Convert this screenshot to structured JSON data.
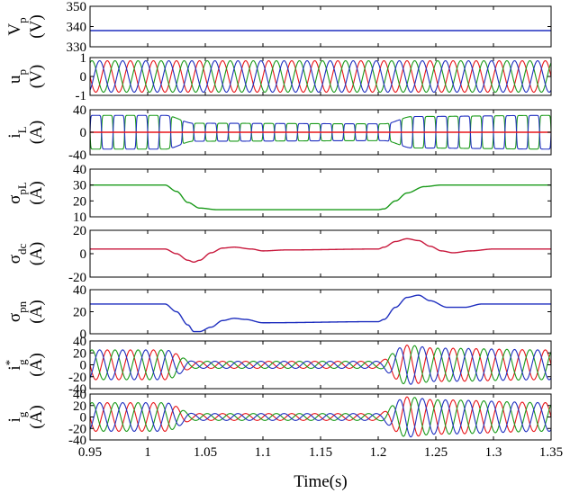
{
  "colors": {
    "red": "#e8161a",
    "green": "#1a9a1a",
    "blue": "#1f2fbf",
    "crimson": "#c8183c",
    "axis": "#000000"
  },
  "chart_data": {
    "type": "line",
    "xlabel": "Time(s)",
    "xlim": [
      0.95,
      1.35
    ],
    "xticks": [
      "0.95",
      "1",
      "1.05",
      "1.1",
      "1.15",
      "1.2",
      "1.25",
      "1.3",
      "1.35"
    ],
    "panels": [
      {
        "id": "vp",
        "ylabel": "V",
        "ylabel_sub": "p",
        "unit": "(V)",
        "ylim": [
          330,
          350
        ],
        "yticks": [
          "350",
          "340",
          "330"
        ],
        "series": [
          {
            "color": "blue",
            "kind": "constant",
            "value": 338
          }
        ]
      },
      {
        "id": "up",
        "ylabel": "u",
        "ylabel_sub": "p",
        "unit": "(V)",
        "ylim": [
          -1.2,
          1.2
        ],
        "yticks": [
          "1",
          "0",
          "-1"
        ],
        "series": [
          {
            "color": "red",
            "kind": "sine",
            "freq_hz": 50,
            "phase_deg": 0,
            "amplitude": 1
          },
          {
            "color": "green",
            "kind": "sine",
            "freq_hz": 50,
            "phase_deg": -120,
            "amplitude": 1
          },
          {
            "color": "blue",
            "kind": "sine",
            "freq_hz": 50,
            "phase_deg": 120,
            "amplitude": 1
          }
        ]
      },
      {
        "id": "iL",
        "ylabel": "i",
        "ylabel_sub": "L",
        "unit": "(A)",
        "ylim": [
          -40,
          40
        ],
        "yticks": [
          "40",
          "0",
          "-40"
        ],
        "series": [
          {
            "color": "green",
            "kind": "square_envelope",
            "freq_hz": 50,
            "phase_deg": 0,
            "amplitude_points": [
              [
                0.95,
                30
              ],
              [
                1.0,
                30
              ],
              [
                1.015,
                30
              ],
              [
                1.04,
                16
              ],
              [
                1.205,
                15
              ],
              [
                1.23,
                28
              ],
              [
                1.35,
                30
              ]
            ]
          },
          {
            "color": "blue",
            "kind": "square_envelope",
            "freq_hz": 50,
            "phase_deg": 180,
            "amplitude_points": [
              [
                0.95,
                30
              ],
              [
                1.0,
                30
              ],
              [
                1.015,
                30
              ],
              [
                1.04,
                16
              ],
              [
                1.205,
                15
              ],
              [
                1.23,
                28
              ],
              [
                1.35,
                30
              ]
            ]
          },
          {
            "color": "red",
            "kind": "constant",
            "value": 0
          }
        ]
      },
      {
        "id": "spL",
        "ylabel": "σ",
        "ylabel_sub": "pL",
        "unit": "(A)",
        "ylim": [
          10,
          40
        ],
        "yticks": [
          "40",
          "30",
          "20",
          "10"
        ],
        "series": [
          {
            "color": "green",
            "kind": "points",
            "points": [
              [
                0.95,
                30
              ],
              [
                1.015,
                30
              ],
              [
                1.025,
                26
              ],
              [
                1.035,
                19
              ],
              [
                1.045,
                15.5
              ],
              [
                1.06,
                14.5
              ],
              [
                1.2,
                14.5
              ],
              [
                1.205,
                15
              ],
              [
                1.215,
                20
              ],
              [
                1.225,
                25
              ],
              [
                1.24,
                29
              ],
              [
                1.255,
                30
              ],
              [
                1.35,
                30
              ]
            ]
          }
        ]
      },
      {
        "id": "sdc",
        "ylabel": "σ",
        "ylabel_sub": "dc",
        "unit": "(A)",
        "ylim": [
          -30,
          20
        ],
        "yticks": [
          "20",
          "0",
          "-20"
        ],
        "series": [
          {
            "color": "crimson",
            "kind": "points",
            "points": [
              [
                0.95,
                0
              ],
              [
                1.015,
                0
              ],
              [
                1.025,
                -5
              ],
              [
                1.035,
                -12
              ],
              [
                1.04,
                -14
              ],
              [
                1.045,
                -12
              ],
              [
                1.055,
                -4
              ],
              [
                1.065,
                1
              ],
              [
                1.075,
                2
              ],
              [
                1.09,
                0
              ],
              [
                1.1,
                -2
              ],
              [
                1.12,
                -1
              ],
              [
                1.2,
                0
              ],
              [
                1.205,
                2
              ],
              [
                1.215,
                8
              ],
              [
                1.225,
                11
              ],
              [
                1.235,
                9
              ],
              [
                1.245,
                3
              ],
              [
                1.255,
                -2
              ],
              [
                1.265,
                -4
              ],
              [
                1.28,
                -2
              ],
              [
                1.3,
                0
              ],
              [
                1.35,
                0
              ]
            ]
          }
        ]
      },
      {
        "id": "spn",
        "ylabel": "σ",
        "ylabel_sub": "pn",
        "unit": "(A)",
        "ylim": [
          0,
          40
        ],
        "yticks": [
          "40",
          "20",
          "0"
        ],
        "series": [
          {
            "color": "blue",
            "kind": "points",
            "points": [
              [
                0.95,
                27
              ],
              [
                1.015,
                27
              ],
              [
                1.025,
                20
              ],
              [
                1.035,
                8
              ],
              [
                1.04,
                2
              ],
              [
                1.045,
                2
              ],
              [
                1.055,
                6
              ],
              [
                1.065,
                12
              ],
              [
                1.075,
                14
              ],
              [
                1.085,
                13
              ],
              [
                1.1,
                10
              ],
              [
                1.2,
                11
              ],
              [
                1.205,
                13
              ],
              [
                1.215,
                24
              ],
              [
                1.225,
                33
              ],
              [
                1.235,
                35
              ],
              [
                1.245,
                30
              ],
              [
                1.26,
                24
              ],
              [
                1.275,
                24
              ],
              [
                1.29,
                27
              ],
              [
                1.35,
                27
              ]
            ]
          }
        ]
      },
      {
        "id": "igref",
        "ylabel": "i",
        "ylabel_sub": "g",
        "ylabel_sup": "*",
        "unit": "(A)",
        "ylim": [
          -40,
          40
        ],
        "yticks": [
          "40",
          "20",
          "0",
          "-20",
          "-40"
        ],
        "series": [
          {
            "color": "red",
            "kind": "sine_envelope",
            "freq_hz": 50,
            "phase_deg": 0,
            "amplitude_points": [
              [
                0.95,
                25
              ],
              [
                1.015,
                25
              ],
              [
                1.04,
                6
              ],
              [
                1.2,
                6
              ],
              [
                1.225,
                33
              ],
              [
                1.25,
                28
              ],
              [
                1.35,
                25
              ]
            ]
          },
          {
            "color": "green",
            "kind": "sine_envelope",
            "freq_hz": 50,
            "phase_deg": -120,
            "amplitude_points": [
              [
                0.95,
                25
              ],
              [
                1.015,
                25
              ],
              [
                1.04,
                6
              ],
              [
                1.2,
                6
              ],
              [
                1.225,
                33
              ],
              [
                1.25,
                28
              ],
              [
                1.35,
                25
              ]
            ]
          },
          {
            "color": "blue",
            "kind": "sine_envelope",
            "freq_hz": 50,
            "phase_deg": 120,
            "amplitude_points": [
              [
                0.95,
                25
              ],
              [
                1.015,
                25
              ],
              [
                1.04,
                6
              ],
              [
                1.2,
                6
              ],
              [
                1.225,
                33
              ],
              [
                1.25,
                28
              ],
              [
                1.35,
                25
              ]
            ]
          }
        ]
      },
      {
        "id": "ig",
        "ylabel": "i",
        "ylabel_sub": "g",
        "unit": "(A)",
        "ylim": [
          -40,
          40
        ],
        "yticks": [
          "40",
          "20",
          "0",
          "-20",
          "-40"
        ],
        "series": [
          {
            "color": "red",
            "kind": "sine_envelope",
            "freq_hz": 50,
            "phase_deg": 0,
            "amplitude_points": [
              [
                0.95,
                25
              ],
              [
                1.015,
                25
              ],
              [
                1.04,
                6
              ],
              [
                1.2,
                6
              ],
              [
                1.225,
                35
              ],
              [
                1.25,
                30
              ],
              [
                1.35,
                25
              ]
            ]
          },
          {
            "color": "green",
            "kind": "sine_envelope",
            "freq_hz": 50,
            "phase_deg": -120,
            "amplitude_points": [
              [
                0.95,
                25
              ],
              [
                1.015,
                25
              ],
              [
                1.04,
                6
              ],
              [
                1.2,
                6
              ],
              [
                1.225,
                35
              ],
              [
                1.25,
                30
              ],
              [
                1.35,
                25
              ]
            ]
          },
          {
            "color": "blue",
            "kind": "sine_envelope",
            "freq_hz": 50,
            "phase_deg": 120,
            "amplitude_points": [
              [
                0.95,
                25
              ],
              [
                1.015,
                25
              ],
              [
                1.04,
                6
              ],
              [
                1.2,
                6
              ],
              [
                1.225,
                35
              ],
              [
                1.25,
                30
              ],
              [
                1.35,
                25
              ]
            ]
          }
        ]
      }
    ]
  }
}
